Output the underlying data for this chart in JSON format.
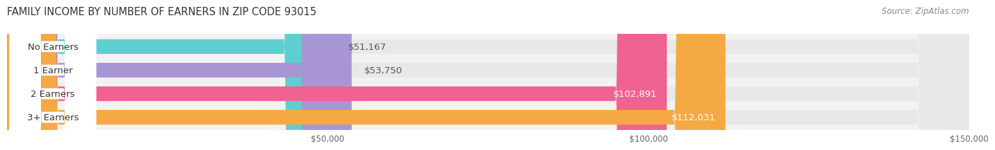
{
  "title": "FAMILY INCOME BY NUMBER OF EARNERS IN ZIP CODE 93015",
  "source": "Source: ZipAtlas.com",
  "categories": [
    "No Earners",
    "1 Earner",
    "2 Earners",
    "3+ Earners"
  ],
  "values": [
    51167,
    53750,
    102891,
    112031
  ],
  "value_labels": [
    "$51,167",
    "$53,750",
    "$102,891",
    "$112,031"
  ],
  "bar_colors": [
    "#5ecfcf",
    "#a896d4",
    "#f06292",
    "#f5a942"
  ],
  "background_color": "#ffffff",
  "plot_bg_color": "#f2f2f2",
  "xlim": [
    0,
    150000
  ],
  "xticks": [
    50000,
    100000,
    150000
  ],
  "xtick_labels": [
    "$50,000",
    "$100,000",
    "$150,000"
  ],
  "title_fontsize": 10.5,
  "source_fontsize": 8.5,
  "bar_height": 0.62,
  "label_fontsize": 9.5,
  "value_fontsize": 9.5,
  "value_inside_threshold": 80000
}
